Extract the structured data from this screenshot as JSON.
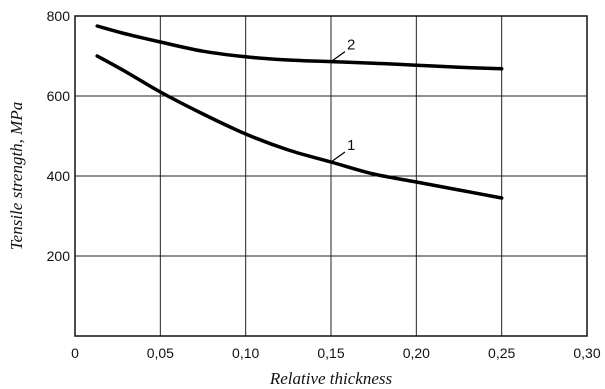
{
  "chart_data": {
    "type": "line",
    "xlabel": "Relative thickness",
    "ylabel": "Tensile strength, MPa",
    "xlim": [
      0,
      0.3
    ],
    "ylim": [
      0,
      800
    ],
    "xticks": [
      0,
      0.05,
      0.1,
      0.15,
      0.2,
      0.25,
      0.3
    ],
    "xtick_labels": [
      "0",
      "0,05",
      "0,10",
      "0,15",
      "0,20",
      "0,25",
      "0,30"
    ],
    "yticks": [
      200,
      400,
      600,
      800
    ],
    "ytick_labels": [
      "200",
      "400",
      "600",
      "800"
    ],
    "grid": true,
    "series": [
      {
        "name": "1",
        "x": [
          0.013,
          0.03,
          0.05,
          0.075,
          0.1,
          0.125,
          0.15,
          0.175,
          0.2,
          0.225,
          0.25
        ],
        "values": [
          700,
          660,
          610,
          555,
          505,
          465,
          435,
          405,
          385,
          365,
          345
        ]
      },
      {
        "name": "2",
        "x": [
          0.013,
          0.03,
          0.05,
          0.075,
          0.1,
          0.125,
          0.15,
          0.175,
          0.2,
          0.225,
          0.25
        ],
        "values": [
          775,
          755,
          735,
          712,
          698,
          690,
          686,
          682,
          677,
          672,
          668
        ]
      }
    ]
  }
}
